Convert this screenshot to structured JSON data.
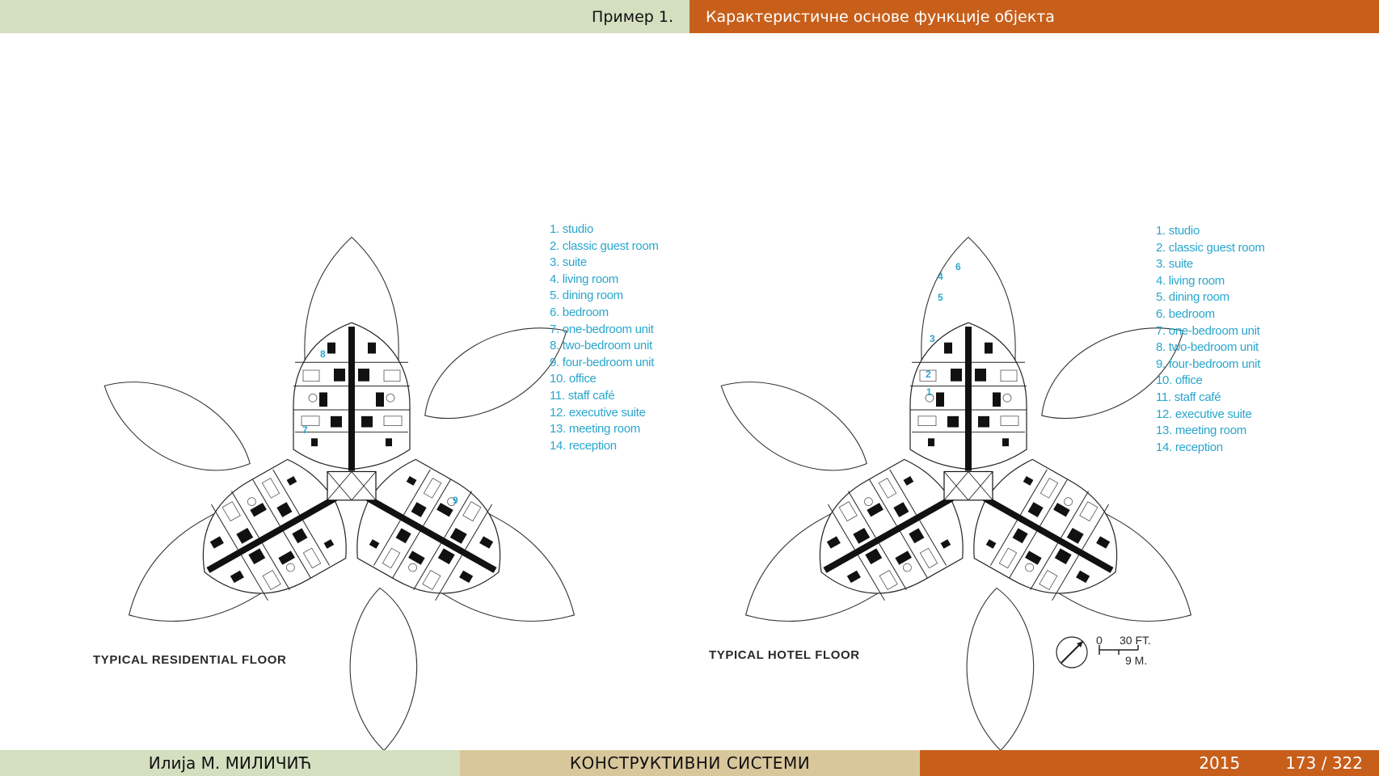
{
  "header": {
    "section": "Пример 1.",
    "title": "Карактеристичне основе функције објекта"
  },
  "plans": {
    "left": {
      "caption": "TYPICAL RESIDENTIAL FLOOR",
      "room_numbers": [
        "8",
        "7",
        "9"
      ]
    },
    "right": {
      "caption": "TYPICAL HOTEL FLOOR",
      "room_numbers": [
        "6",
        "4",
        "5",
        "3",
        "2",
        "1"
      ]
    }
  },
  "legend": [
    "1. studio",
    "2. classic guest room",
    "3. suite",
    "4. living room",
    "5. dining room",
    "6. bedroom",
    "7. one-bedroom unit",
    "8. two-bedroom unit",
    "9. four-bedroom unit",
    "10. office",
    "11. staff café",
    "12. executive suite",
    "13. meeting room",
    "14. reception"
  ],
  "scale_bar": {
    "zero": "0",
    "feet": "30 FT.",
    "meters": "9 M."
  },
  "footer": {
    "author": "Илија М. МИЛИЧИЋ",
    "course": "КОНСТРУКТИВНИ СИСТЕМИ",
    "year": "2015",
    "page": "173 / 322"
  },
  "colors": {
    "top_left_bg": "#d3dfbf",
    "accent_orange": "#c75f1b",
    "footer_center_bg": "#d9c79c",
    "legend_blue": "#2aa6cc"
  }
}
